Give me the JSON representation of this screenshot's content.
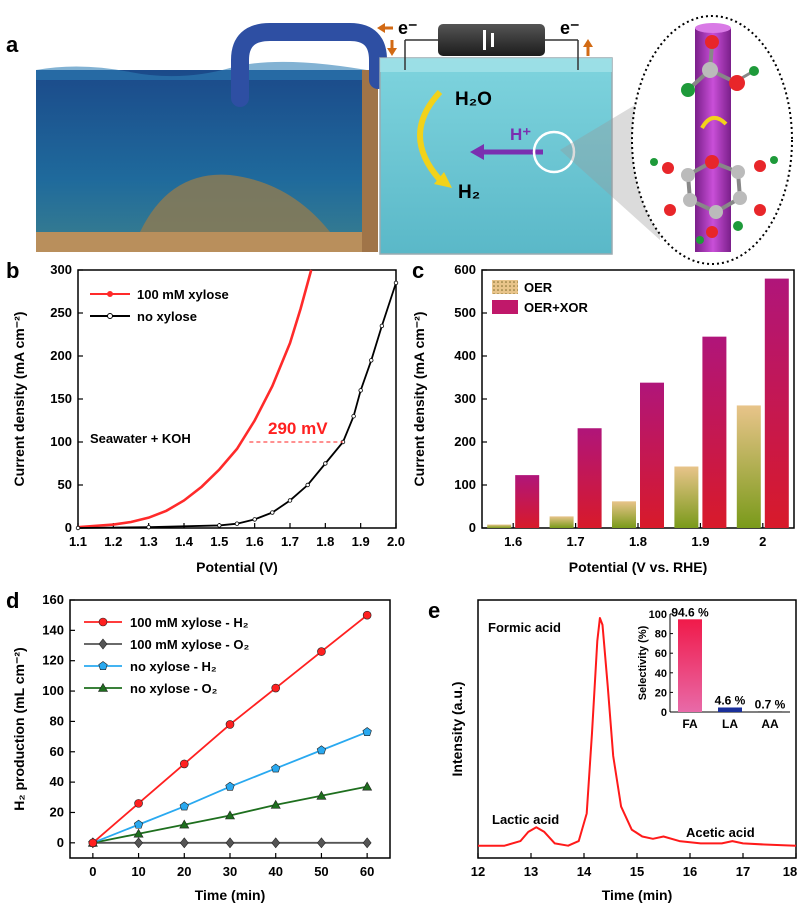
{
  "panels": {
    "a": "a",
    "b": "b",
    "c": "c",
    "d": "d",
    "e": "e"
  },
  "schematic": {
    "electron_left": "e⁻",
    "electron_right": "e⁻",
    "water": "H₂O",
    "proton": "H⁺",
    "hydrogen": "H₂",
    "colors": {
      "sea_deep": "#1a4f86",
      "sea_light": "#6fc9d6",
      "pipe": "#2e4fa3",
      "soil": "#b98f5c"
    }
  },
  "chart_data": [
    {
      "id": "b",
      "type": "line",
      "title": "",
      "xlabel": "Potential (V)",
      "ylabel": "Current density (mA cm⁻²)",
      "xlim": [
        1.1,
        2.0
      ],
      "ylim": [
        0,
        300
      ],
      "xticks": [
        "1.1",
        "1.2",
        "1.3",
        "1.4",
        "1.5",
        "1.6",
        "1.7",
        "1.8",
        "1.9",
        "2.0"
      ],
      "yticks": [
        "0",
        "50",
        "100",
        "150",
        "200",
        "250",
        "300"
      ],
      "annotation": "Seawater + KOH",
      "delta_label": "290 mV",
      "legend_position": "top-left",
      "series": [
        {
          "name": "100 mM xylose",
          "color": "#ff2a2a",
          "x": [
            1.1,
            1.2,
            1.25,
            1.3,
            1.35,
            1.4,
            1.45,
            1.5,
            1.55,
            1.6,
            1.65,
            1.7,
            1.73,
            1.76
          ],
          "y": [
            1,
            4,
            7,
            12,
            20,
            32,
            48,
            68,
            92,
            125,
            165,
            215,
            255,
            300
          ]
        },
        {
          "name": "no xylose",
          "color": "#000000",
          "x": [
            1.1,
            1.3,
            1.5,
            1.55,
            1.6,
            1.65,
            1.7,
            1.75,
            1.8,
            1.85,
            1.88,
            1.9,
            1.93,
            1.96,
            2.0
          ],
          "y": [
            0,
            1,
            3,
            5,
            10,
            18,
            32,
            50,
            75,
            100,
            130,
            160,
            195,
            235,
            285
          ]
        }
      ]
    },
    {
      "id": "c",
      "type": "bar",
      "title": "",
      "xlabel": "Potential (V vs. RHE)",
      "ylabel": "Current density (mA cm⁻²)",
      "ylim": [
        0,
        600
      ],
      "categories": [
        "1.6",
        "1.7",
        "1.8",
        "1.9",
        "2"
      ],
      "yticks": [
        "0",
        "100",
        "200",
        "300",
        "400",
        "500",
        "600"
      ],
      "legend_position": "top-left",
      "series": [
        {
          "name": "OER",
          "color": "#9a9a3a",
          "values": [
            8,
            27,
            62,
            143,
            285
          ]
        },
        {
          "name": "OER+XOR",
          "color": "#c0186a",
          "values": [
            123,
            232,
            338,
            445,
            580
          ]
        }
      ]
    },
    {
      "id": "d",
      "type": "line",
      "title": "",
      "xlabel": "Time (min)",
      "ylabel": "H₂ production (mL cm⁻²)",
      "xlim": [
        -5,
        65
      ],
      "ylim": [
        -10,
        160
      ],
      "xticks": [
        "0",
        "10",
        "20",
        "30",
        "40",
        "50",
        "60"
      ],
      "yticks": [
        "0",
        "20",
        "40",
        "60",
        "80",
        "100",
        "120",
        "140",
        "160"
      ],
      "legend_position": "top-left",
      "series": [
        {
          "name": "100 mM xylose - H₂",
          "color": "#ff2020",
          "marker": "circle",
          "x": [
            0,
            10,
            20,
            30,
            40,
            50,
            60
          ],
          "y": [
            0,
            26,
            52,
            78,
            102,
            126,
            150
          ]
        },
        {
          "name": "100 mM xylose - O₂",
          "color": "#555555",
          "marker": "diamond",
          "x": [
            0,
            10,
            20,
            30,
            40,
            50,
            60
          ],
          "y": [
            0,
            0,
            0,
            0,
            0,
            0,
            0
          ]
        },
        {
          "name": "no xylose - H₂",
          "color": "#29a9f0",
          "marker": "pentagon",
          "x": [
            0,
            10,
            20,
            30,
            40,
            50,
            60
          ],
          "y": [
            0,
            12,
            24,
            37,
            49,
            61,
            73
          ]
        },
        {
          "name": "no xylose - O₂",
          "color": "#1e6f1e",
          "marker": "triangle",
          "x": [
            0,
            10,
            20,
            30,
            40,
            50,
            60
          ],
          "y": [
            0,
            6,
            12,
            18,
            25,
            31,
            37
          ]
        }
      ]
    },
    {
      "id": "e",
      "type": "line",
      "title": "",
      "xlabel": "Time (min)",
      "ylabel": "Intensity (a.u.)",
      "xlim": [
        12,
        18
      ],
      "xticks": [
        "12",
        "13",
        "14",
        "15",
        "16",
        "17",
        "18"
      ],
      "peak_labels": [
        "Formic acid",
        "Lactic acid",
        "Acetic acid"
      ],
      "series": [
        {
          "name": "",
          "color": "#ff1a1a",
          "x": [
            12,
            12.5,
            12.8,
            12.95,
            13.1,
            13.25,
            13.45,
            13.7,
            13.9,
            14.05,
            14.15,
            14.25,
            14.3,
            14.35,
            14.45,
            14.55,
            14.7,
            14.9,
            15.1,
            15.3,
            15.5,
            15.8,
            16.2,
            16.6,
            16.8,
            17.0,
            17.4,
            18.0
          ],
          "y": [
            0.01,
            0.01,
            0.03,
            0.07,
            0.09,
            0.07,
            0.02,
            0.01,
            0.03,
            0.15,
            0.5,
            0.9,
            1.0,
            0.97,
            0.7,
            0.4,
            0.18,
            0.08,
            0.05,
            0.04,
            0.05,
            0.03,
            0.02,
            0.02,
            0.03,
            0.02,
            0.015,
            0.01
          ]
        }
      ],
      "inset": {
        "type": "bar",
        "ylabel": "Selectivity (%)",
        "ylim": [
          0,
          100
        ],
        "yticks": [
          "0",
          "20",
          "40",
          "60",
          "80",
          "100"
        ],
        "categories": [
          "FA",
          "LA",
          "AA"
        ],
        "values": [
          94.6,
          4.6,
          0.7
        ],
        "value_labels": [
          "94.6 %",
          "4.6 %",
          "0.7 %"
        ],
        "colors": [
          "#e8186a",
          "#1a2f9a",
          "#333333"
        ]
      }
    }
  ]
}
